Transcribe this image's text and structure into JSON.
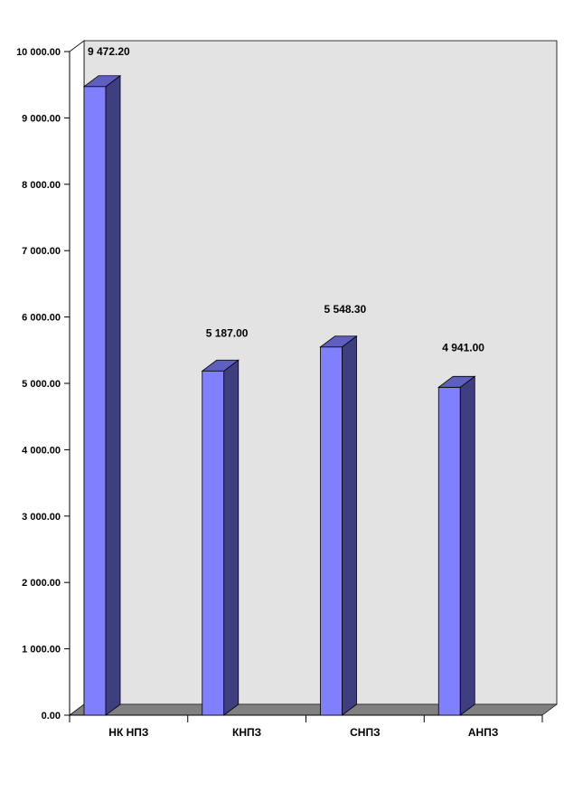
{
  "chart_data": {
    "type": "bar",
    "categories": [
      "НК НПЗ",
      "КНПЗ",
      "СНПЗ",
      "АНПЗ"
    ],
    "values": [
      9472.2,
      5187.0,
      5548.3,
      4941.0
    ],
    "data_labels": [
      "9 472.20",
      "5 187.00",
      "5 548.30",
      "4 941.00"
    ],
    "yticks": [
      0,
      1000,
      2000,
      3000,
      4000,
      5000,
      6000,
      7000,
      8000,
      9000,
      10000
    ],
    "ytick_labels": [
      "0.00",
      "1 000.00",
      "2 000.00",
      "3 000.00",
      "4 000.00",
      "5 000.00",
      "6 000.00",
      "7 000.00",
      "8 000.00",
      "9 000.00",
      "10 000.00"
    ],
    "ylim": [
      0,
      10000
    ],
    "title": "",
    "xlabel": "",
    "ylabel": "",
    "grid": false,
    "legend": "none",
    "style": "3d-column",
    "colors": {
      "bar_front": "#8080ff",
      "bar_side": "#3f3f7f",
      "bar_top": "#5f5fbf",
      "wall": "#e3e3e3",
      "floor": "#808080"
    }
  }
}
